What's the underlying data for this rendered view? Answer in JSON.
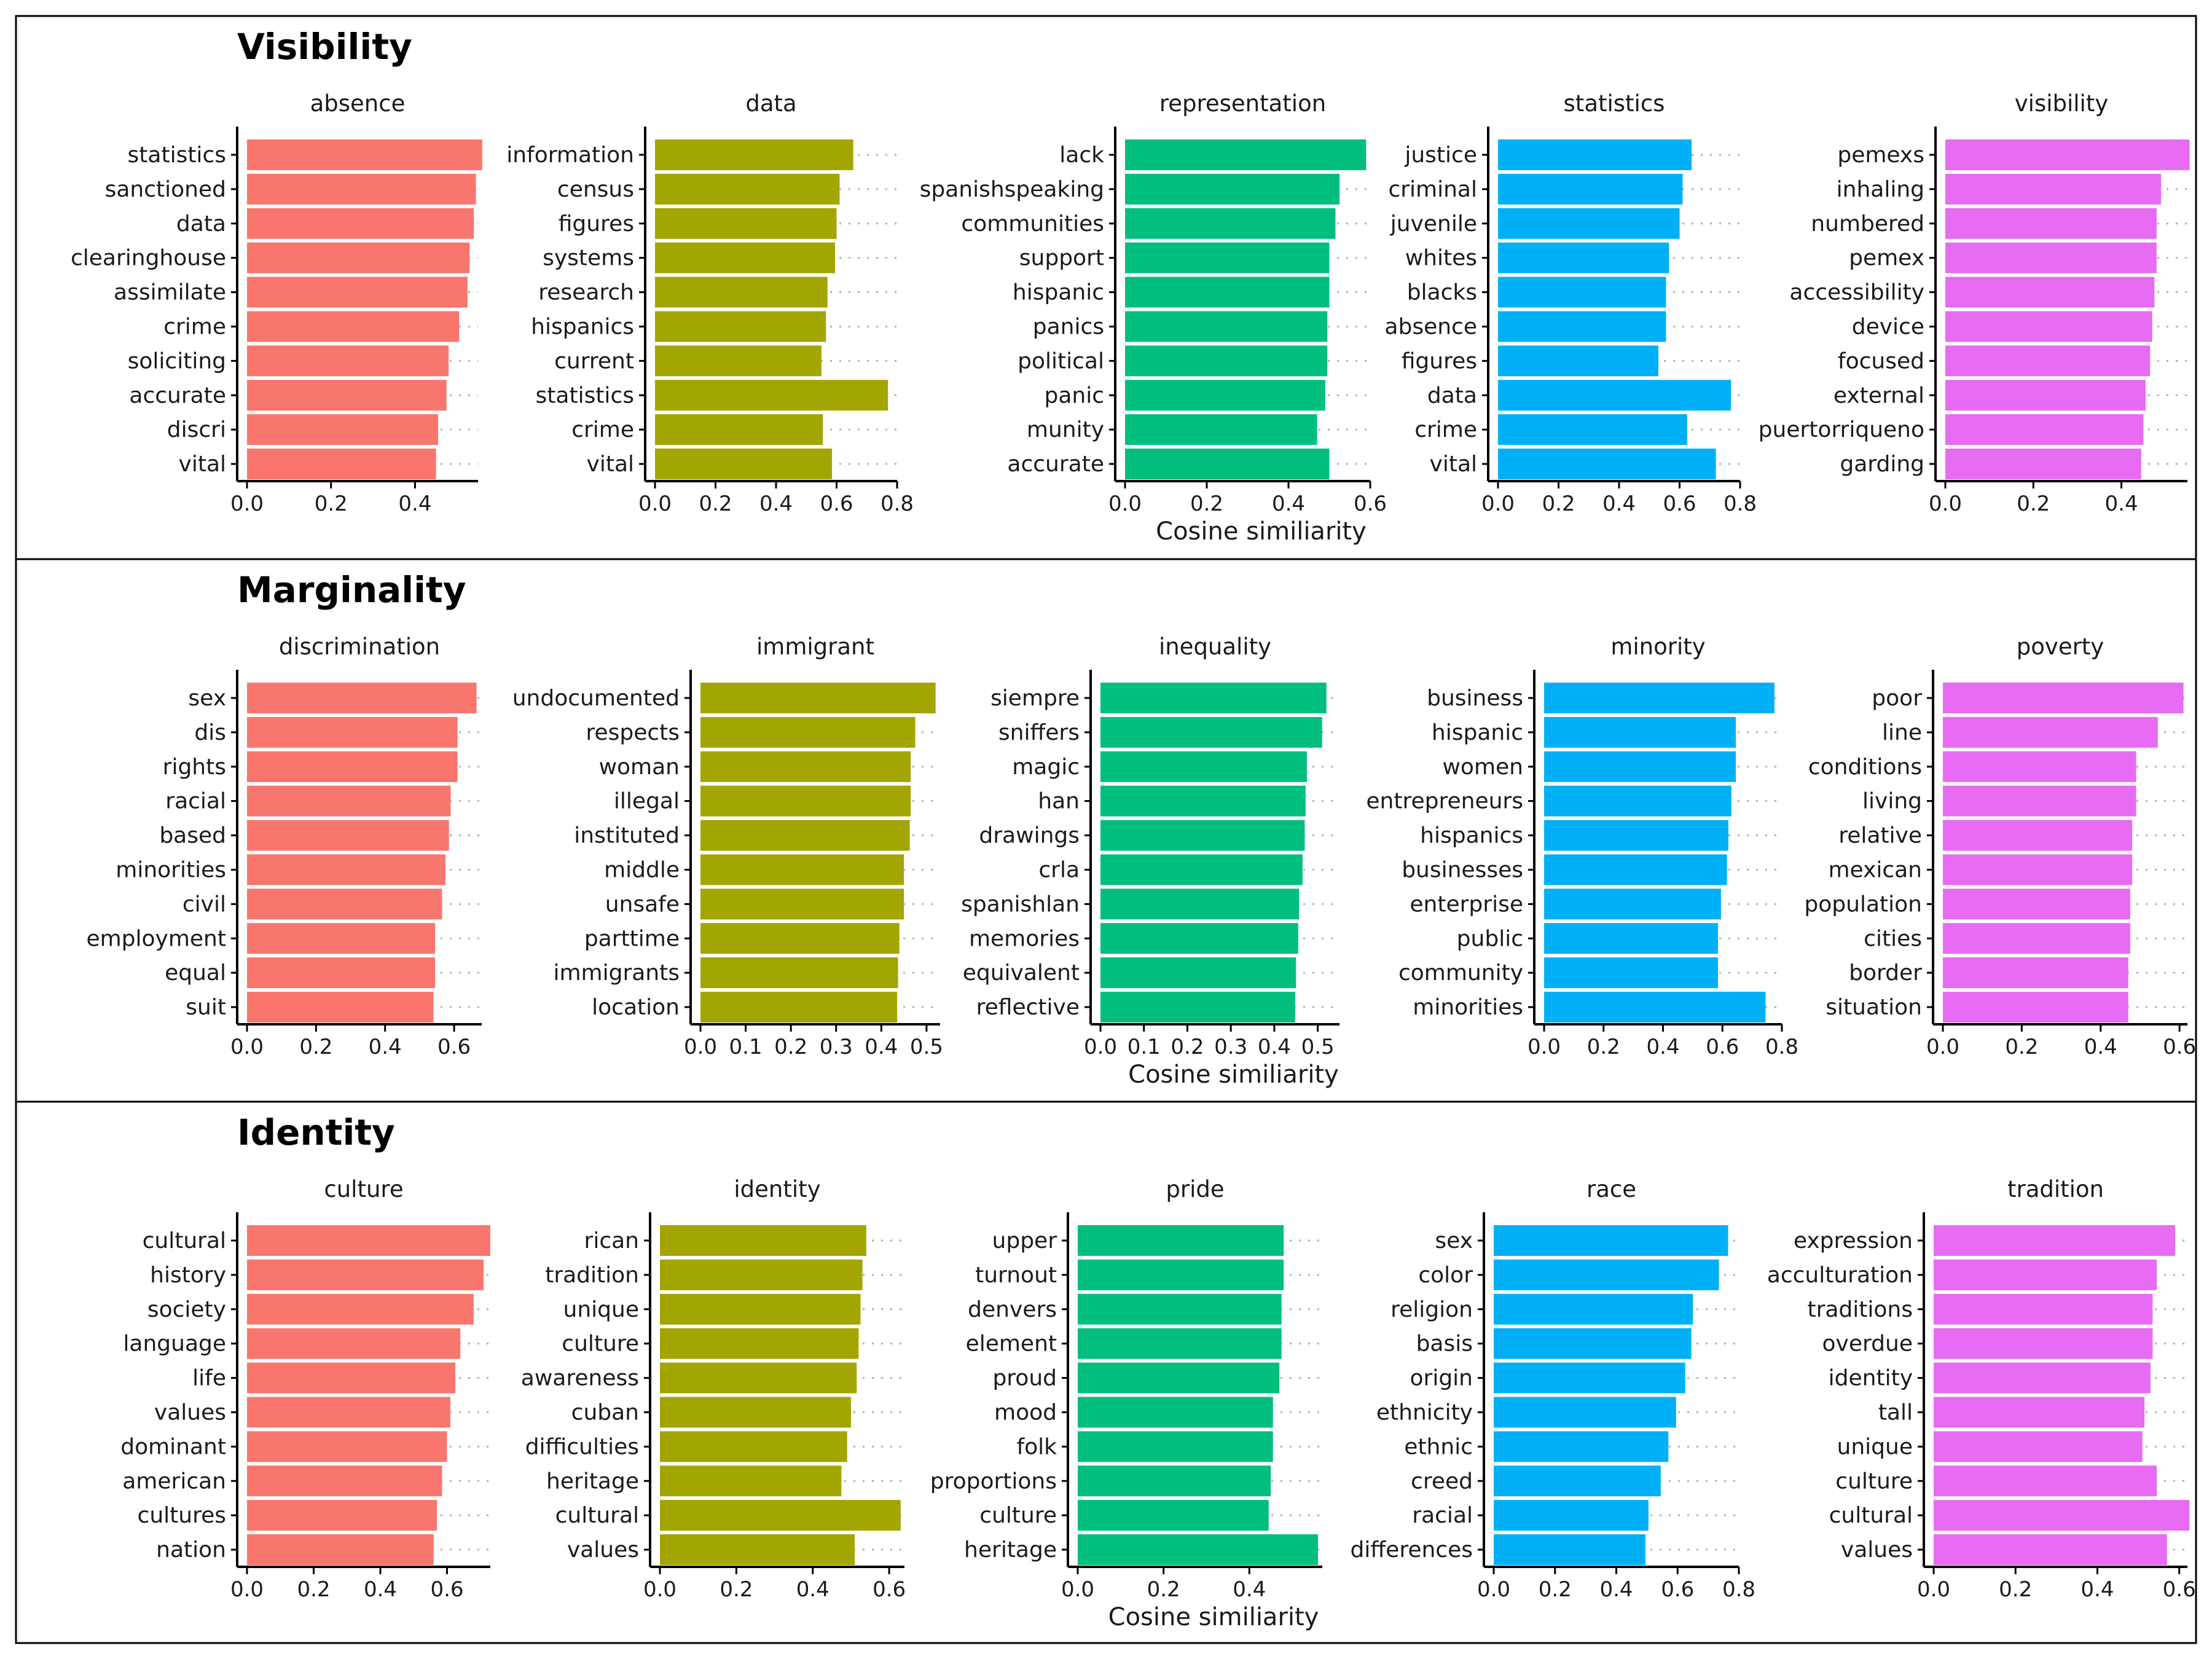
{
  "chart_data": [
    {
      "type": "bar",
      "title": "Visibility",
      "xlabel": "Cosine similiarity",
      "panels": [
        {
          "name": "absence",
          "color": "#F8766D",
          "xlim": [
            0,
            0.55
          ],
          "ticks": [
            0.0,
            0.2,
            0.4
          ],
          "categories": [
            "statistics",
            "sanctioned",
            "data",
            "clearinghouse",
            "assimilate",
            "crime",
            "soliciting",
            "accurate",
            "discri",
            "vital"
          ],
          "values": [
            0.56,
            0.545,
            0.54,
            0.53,
            0.525,
            0.505,
            0.48,
            0.475,
            0.455,
            0.45
          ]
        },
        {
          "name": "data",
          "color": "#A3A500",
          "xlim": [
            0,
            0.8
          ],
          "ticks": [
            0.0,
            0.2,
            0.4,
            0.6,
            0.8
          ],
          "categories": [
            "information",
            "census",
            "figures",
            "systems",
            "research",
            "hispanics",
            "current",
            "statistics",
            "crime",
            "vital"
          ],
          "values": [
            0.655,
            0.61,
            0.6,
            0.595,
            0.57,
            0.565,
            0.55,
            0.77,
            0.555,
            0.585
          ]
        },
        {
          "name": "representation",
          "color": "#00BF7D",
          "xlim": [
            0,
            0.6
          ],
          "ticks": [
            0.0,
            0.2,
            0.4,
            0.6
          ],
          "categories": [
            "lack",
            "spanishspeaking",
            "communities",
            "support",
            "hispanic",
            "panics",
            "political",
            "panic",
            "munity",
            "accurate"
          ],
          "values": [
            0.59,
            0.525,
            0.515,
            0.5,
            0.5,
            0.495,
            0.495,
            0.49,
            0.47,
            0.5
          ]
        },
        {
          "name": "statistics",
          "color": "#00B0F6",
          "xlim": [
            0,
            0.8
          ],
          "ticks": [
            0.0,
            0.2,
            0.4,
            0.6,
            0.8
          ],
          "categories": [
            "justice",
            "criminal",
            "juvenile",
            "whites",
            "blacks",
            "absence",
            "figures",
            "data",
            "crime",
            "vital"
          ],
          "values": [
            0.64,
            0.61,
            0.6,
            0.565,
            0.555,
            0.555,
            0.53,
            0.77,
            0.625,
            0.72
          ]
        },
        {
          "name": "visibility",
          "color": "#E76BF3",
          "xlim": [
            0,
            0.55
          ],
          "ticks": [
            0.0,
            0.2,
            0.4
          ],
          "categories": [
            "pemexs",
            "inhaling",
            "numbered",
            "pemex",
            "accessibility",
            "device",
            "focused",
            "external",
            "puertorriqueno",
            "garding"
          ],
          "values": [
            0.555,
            0.49,
            0.48,
            0.48,
            0.475,
            0.47,
            0.465,
            0.455,
            0.45,
            0.445
          ]
        }
      ]
    },
    {
      "type": "bar",
      "title": "Marginality",
      "xlabel": "Cosine similiarity",
      "panels": [
        {
          "name": "discrimination",
          "color": "#F8766D",
          "xlim": [
            0,
            0.68
          ],
          "ticks": [
            0.0,
            0.2,
            0.4,
            0.6
          ],
          "categories": [
            "sex",
            "dis",
            "rights",
            "racial",
            "based",
            "minorities",
            "civil",
            "employment",
            "equal",
            "suit"
          ],
          "values": [
            0.665,
            0.61,
            0.61,
            0.59,
            0.585,
            0.575,
            0.565,
            0.545,
            0.545,
            0.54
          ]
        },
        {
          "name": "immigrant",
          "color": "#A3A500",
          "xlim": [
            0,
            0.53
          ],
          "ticks": [
            0.0,
            0.1,
            0.2,
            0.3,
            0.4,
            0.5
          ],
          "categories": [
            "undocumented",
            "respects",
            "woman",
            "illegal",
            "instituted",
            "middle",
            "unsafe",
            "parttime",
            "immigrants",
            "location"
          ],
          "values": [
            0.52,
            0.475,
            0.465,
            0.465,
            0.463,
            0.45,
            0.45,
            0.44,
            0.437,
            0.435
          ]
        },
        {
          "name": "inequality",
          "color": "#00BF7D",
          "xlim": [
            0,
            0.55
          ],
          "ticks": [
            0.0,
            0.1,
            0.2,
            0.3,
            0.4,
            0.5
          ],
          "categories": [
            "siempre",
            "sniffers",
            "magic",
            "han",
            "drawings",
            "crla",
            "spanishlan",
            "memories",
            "equivalent",
            "reflective"
          ],
          "values": [
            0.52,
            0.51,
            0.475,
            0.472,
            0.47,
            0.465,
            0.457,
            0.455,
            0.45,
            0.448
          ]
        },
        {
          "name": "minority",
          "color": "#00B0F6",
          "xlim": [
            0,
            0.8
          ],
          "ticks": [
            0.0,
            0.2,
            0.4,
            0.6,
            0.8
          ],
          "categories": [
            "business",
            "hispanic",
            "women",
            "entrepreneurs",
            "hispanics",
            "businesses",
            "enterprise",
            "public",
            "community",
            "minorities"
          ],
          "values": [
            0.775,
            0.645,
            0.645,
            0.63,
            0.62,
            0.615,
            0.595,
            0.585,
            0.585,
            0.745
          ]
        },
        {
          "name": "poverty",
          "color": "#E76BF3",
          "xlim": [
            0,
            0.62
          ],
          "ticks": [
            0.0,
            0.2,
            0.4,
            0.6
          ],
          "categories": [
            "poor",
            "line",
            "conditions",
            "living",
            "relative",
            "mexican",
            "population",
            "cities",
            "border",
            "situation"
          ],
          "values": [
            0.61,
            0.545,
            0.49,
            0.49,
            0.48,
            0.48,
            0.475,
            0.475,
            0.47,
            0.47
          ]
        }
      ]
    },
    {
      "type": "bar",
      "title": "Identity",
      "xlabel": "Cosine similiarity",
      "panels": [
        {
          "name": "culture",
          "color": "#F8766D",
          "xlim": [
            0,
            0.73
          ],
          "ticks": [
            0.0,
            0.2,
            0.4,
            0.6
          ],
          "categories": [
            "cultural",
            "history",
            "society",
            "language",
            "life",
            "values",
            "dominant",
            "american",
            "cultures",
            "nation"
          ],
          "values": [
            0.73,
            0.71,
            0.68,
            0.64,
            0.625,
            0.61,
            0.6,
            0.585,
            0.57,
            0.56
          ]
        },
        {
          "name": "identity",
          "color": "#A3A500",
          "xlim": [
            0,
            0.64
          ],
          "ticks": [
            0.0,
            0.2,
            0.4,
            0.6
          ],
          "categories": [
            "rican",
            "tradition",
            "unique",
            "culture",
            "awareness",
            "cuban",
            "difficulties",
            "heritage",
            "cultural",
            "values"
          ],
          "values": [
            0.54,
            0.53,
            0.525,
            0.52,
            0.515,
            0.5,
            0.49,
            0.475,
            0.63,
            0.51
          ]
        },
        {
          "name": "pride",
          "color": "#00BF7D",
          "xlim": [
            0,
            0.57
          ],
          "ticks": [
            0.0,
            0.2,
            0.4
          ],
          "categories": [
            "upper",
            "turnout",
            "denvers",
            "element",
            "proud",
            "mood",
            "folk",
            "proportions",
            "culture",
            "heritage"
          ],
          "values": [
            0.48,
            0.48,
            0.475,
            0.475,
            0.47,
            0.455,
            0.455,
            0.45,
            0.445,
            0.56
          ]
        },
        {
          "name": "race",
          "color": "#00B0F6",
          "xlim": [
            0,
            0.8
          ],
          "ticks": [
            0.0,
            0.2,
            0.4,
            0.6,
            0.8
          ],
          "categories": [
            "sex",
            "color",
            "religion",
            "basis",
            "origin",
            "ethnicity",
            "ethnic",
            "creed",
            "racial",
            "differences"
          ],
          "values": [
            0.765,
            0.735,
            0.65,
            0.645,
            0.625,
            0.595,
            0.57,
            0.545,
            0.505,
            0.495
          ]
        },
        {
          "name": "tradition",
          "color": "#E76BF3",
          "xlim": [
            0,
            0.62
          ],
          "ticks": [
            0.0,
            0.2,
            0.4,
            0.6
          ],
          "categories": [
            "expression",
            "acculturation",
            "traditions",
            "overdue",
            "identity",
            "tall",
            "unique",
            "culture",
            "cultural",
            "values"
          ],
          "values": [
            0.59,
            0.545,
            0.535,
            0.535,
            0.53,
            0.515,
            0.51,
            0.545,
            0.625,
            0.57
          ]
        }
      ]
    }
  ]
}
